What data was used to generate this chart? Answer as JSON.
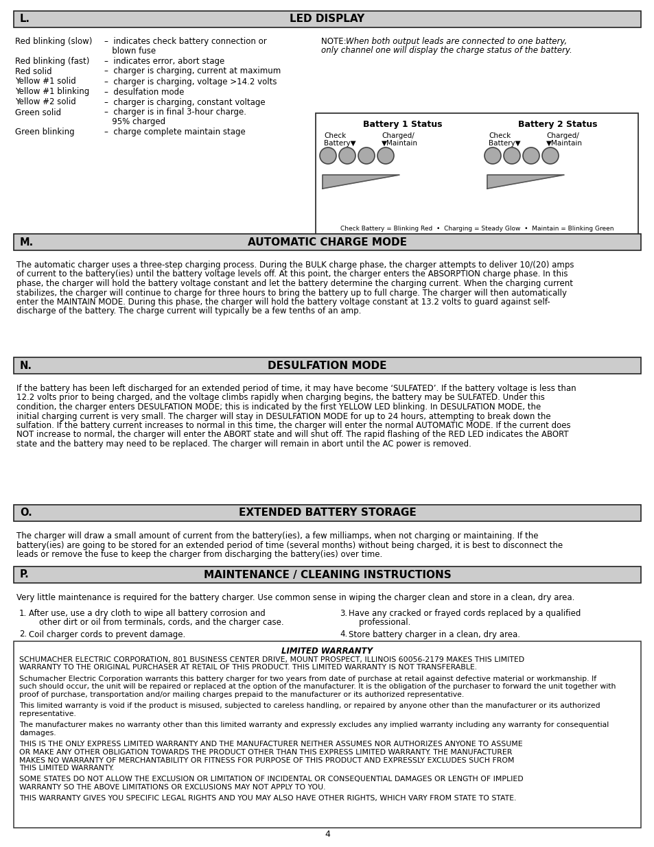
{
  "bg_color": "#ffffff",
  "header_bg": "#cccccc",
  "led_items": [
    [
      "Red blinking (slow)",
      "–  indicates check battery connection or",
      "   blown fuse"
    ],
    [
      "Red blinking (fast)",
      "–  indicates error, abort stage",
      ""
    ],
    [
      "Red solid",
      "–  charger is charging, current at maximum",
      ""
    ],
    [
      "Yellow #1 solid",
      "–  charger is charging, voltage >14.2 volts",
      ""
    ],
    [
      "Yellow #1 blinking",
      "–  desulfation mode",
      ""
    ],
    [
      "Yellow #2 solid",
      "–  charger is charging, constant voltage",
      ""
    ],
    [
      "Green solid",
      "–  charger is in final 3-hour charge.",
      "   95% charged"
    ],
    [
      "Green blinking",
      "–  charge complete maintain stage",
      ""
    ]
  ],
  "led_note1": "NOTE: ",
  "led_note2": "When both output leads are connected to one battery,",
  "led_note3": "only channel one will display the charge status of the battery.",
  "batt_label": "Check Battery = Blinking Red  •  Charging = Steady Glow  •  Maintain = Blinking Green",
  "auto_lines": [
    "The automatic charger uses a three-step charging process. During the BULK charge phase, the charger attempts to deliver 10/(20) amps",
    "of current to the battery(ies) until the battery voltage levels off. At this point, the charger enters the ABSORPTION charge phase. In this",
    "phase, the charger will hold the battery voltage constant and let the battery determine the charging current. When the charging current",
    "stabilizes, the charger will continue to charge for three hours to bring the battery up to full charge. The charger will then automatically",
    "enter the MAINTAIN MODE. During this phase, the charger will hold the battery voltage constant at 13.2 volts to guard against self-",
    "discharge of the battery. The charge current will typically be a few tenths of an amp."
  ],
  "desulf_lines": [
    "If the battery has been left discharged for an extended period of time, it may have become ‘SULFATED’. If the battery voltage is less than",
    "12.2 volts prior to being charged, and the voltage climbs rapidly when charging begins, the battery may be SULFATED. Under this",
    "condition, the charger enters DESULFATION MODE; this is indicated by the first YELLOW LED blinking. In DESULFATION MODE, the",
    "initial charging current is very small. The charger will stay in DESULFATION MODE for up to 24 hours, attempting to break down the",
    "sulfation. If the battery current increases to normal in this time, the charger will enter the normal AUTOMATIC MODE. If the current does",
    "NOT increase to normal, the charger will enter the ABORT state and will shut off. The rapid flashing of the RED LED indicates the ABORT",
    "state and the battery may need to be replaced. The charger will remain in abort until the AC power is removed."
  ],
  "ext_lines": [
    "The charger will draw a small amount of current from the battery(ies), a few milliamps, when not charging or maintaining. If the",
    "battery(ies) are going to be stored for an extended period of time (several months) without being charged, it is best to disconnect the",
    "leads or remove the fuse to keep the charger from discharging the battery(ies) over time."
  ],
  "maint_intro": "Very little maintenance is required for the battery charger. Use common sense in wiping the charger clean and store in a clean, dry area.",
  "maint_col1": [
    [
      "1.",
      "After use, use a dry cloth to wipe all battery corrosion and",
      "    other dirt or oil from terminals, cords, and the charger case."
    ],
    [
      "2.",
      "Coil charger cords to prevent damage.",
      ""
    ]
  ],
  "maint_col2": [
    [
      "3.",
      "Have any cracked or frayed cords replaced by a qualified",
      "    professional."
    ],
    [
      "4.",
      "Store battery charger in a clean, dry area.",
      ""
    ]
  ],
  "warr_title": "LIMITED WARRANTY",
  "warr_paras": [
    [
      "SCHUMACHER ELECTRIC CORPORATION, 801 BUSINESS CENTER DRIVE, MOUNT PROSPECT, ILLINOIS 60056-2179 MAKES THIS LIMITED",
      "WARRANTY TO THE ORIGINAL PURCHASER AT RETAIL OF THIS PRODUCT. THIS LIMITED WARRANTY IS NOT TRANSFERABLE."
    ],
    [
      "Schumacher Electric Corporation warrants this battery charger for two years from date of purchase at retail against defective material or workmanship. If",
      "such should occur, the unit will be repaired or replaced at the option of the manufacturer. It is the obligation of the purchaser to forward the unit together with",
      "proof of purchase, transportation and/or mailing charges prepaid to the manufacturer or its authorized representative."
    ],
    [
      "This limited warranty is void if the product is misused, subjected to careless handling, or repaired by anyone other than the manufacturer or its authorized",
      "representative."
    ],
    [
      "The manufacturer makes no warranty other than this limited warranty and expressly excludes any implied warranty including any warranty for consequential",
      "damages."
    ],
    [
      "THIS IS THE ONLY EXPRESS LIMITED WARRANTY AND THE MANUFACTURER NEITHER ASSUMES NOR AUTHORIZES ANYONE TO ASSUME",
      "OR MAKE ANY OTHER OBLIGATION TOWARDS THE PRODUCT OTHER THAN THIS EXPRESS LIMITED WARRANTY. THE MANUFACTURER",
      "MAKES NO WARRANTY OF MERCHANTABILITY OR FITNESS FOR PURPOSE OF THIS PRODUCT AND EXPRESSLY EXCLUDES SUCH FROM",
      "THIS LIMITED WARRANTY."
    ],
    [
      "SOME STATES DO NOT ALLOW THE EXCLUSION OR LIMITATION OF INCIDENTAL OR CONSEQUENTIAL DAMAGES OR LENGTH OF IMPLIED",
      "WARRANTY SO THE ABOVE LIMITATIONS OR EXCLUSIONS MAY NOT APPLY TO YOU."
    ],
    [
      "THIS WARRANTY GIVES YOU SPECIFIC LEGAL RIGHTS AND YOU MAY ALSO HAVE OTHER RIGHTS, WHICH VARY FROM STATE TO STATE."
    ]
  ],
  "page_num": "4"
}
